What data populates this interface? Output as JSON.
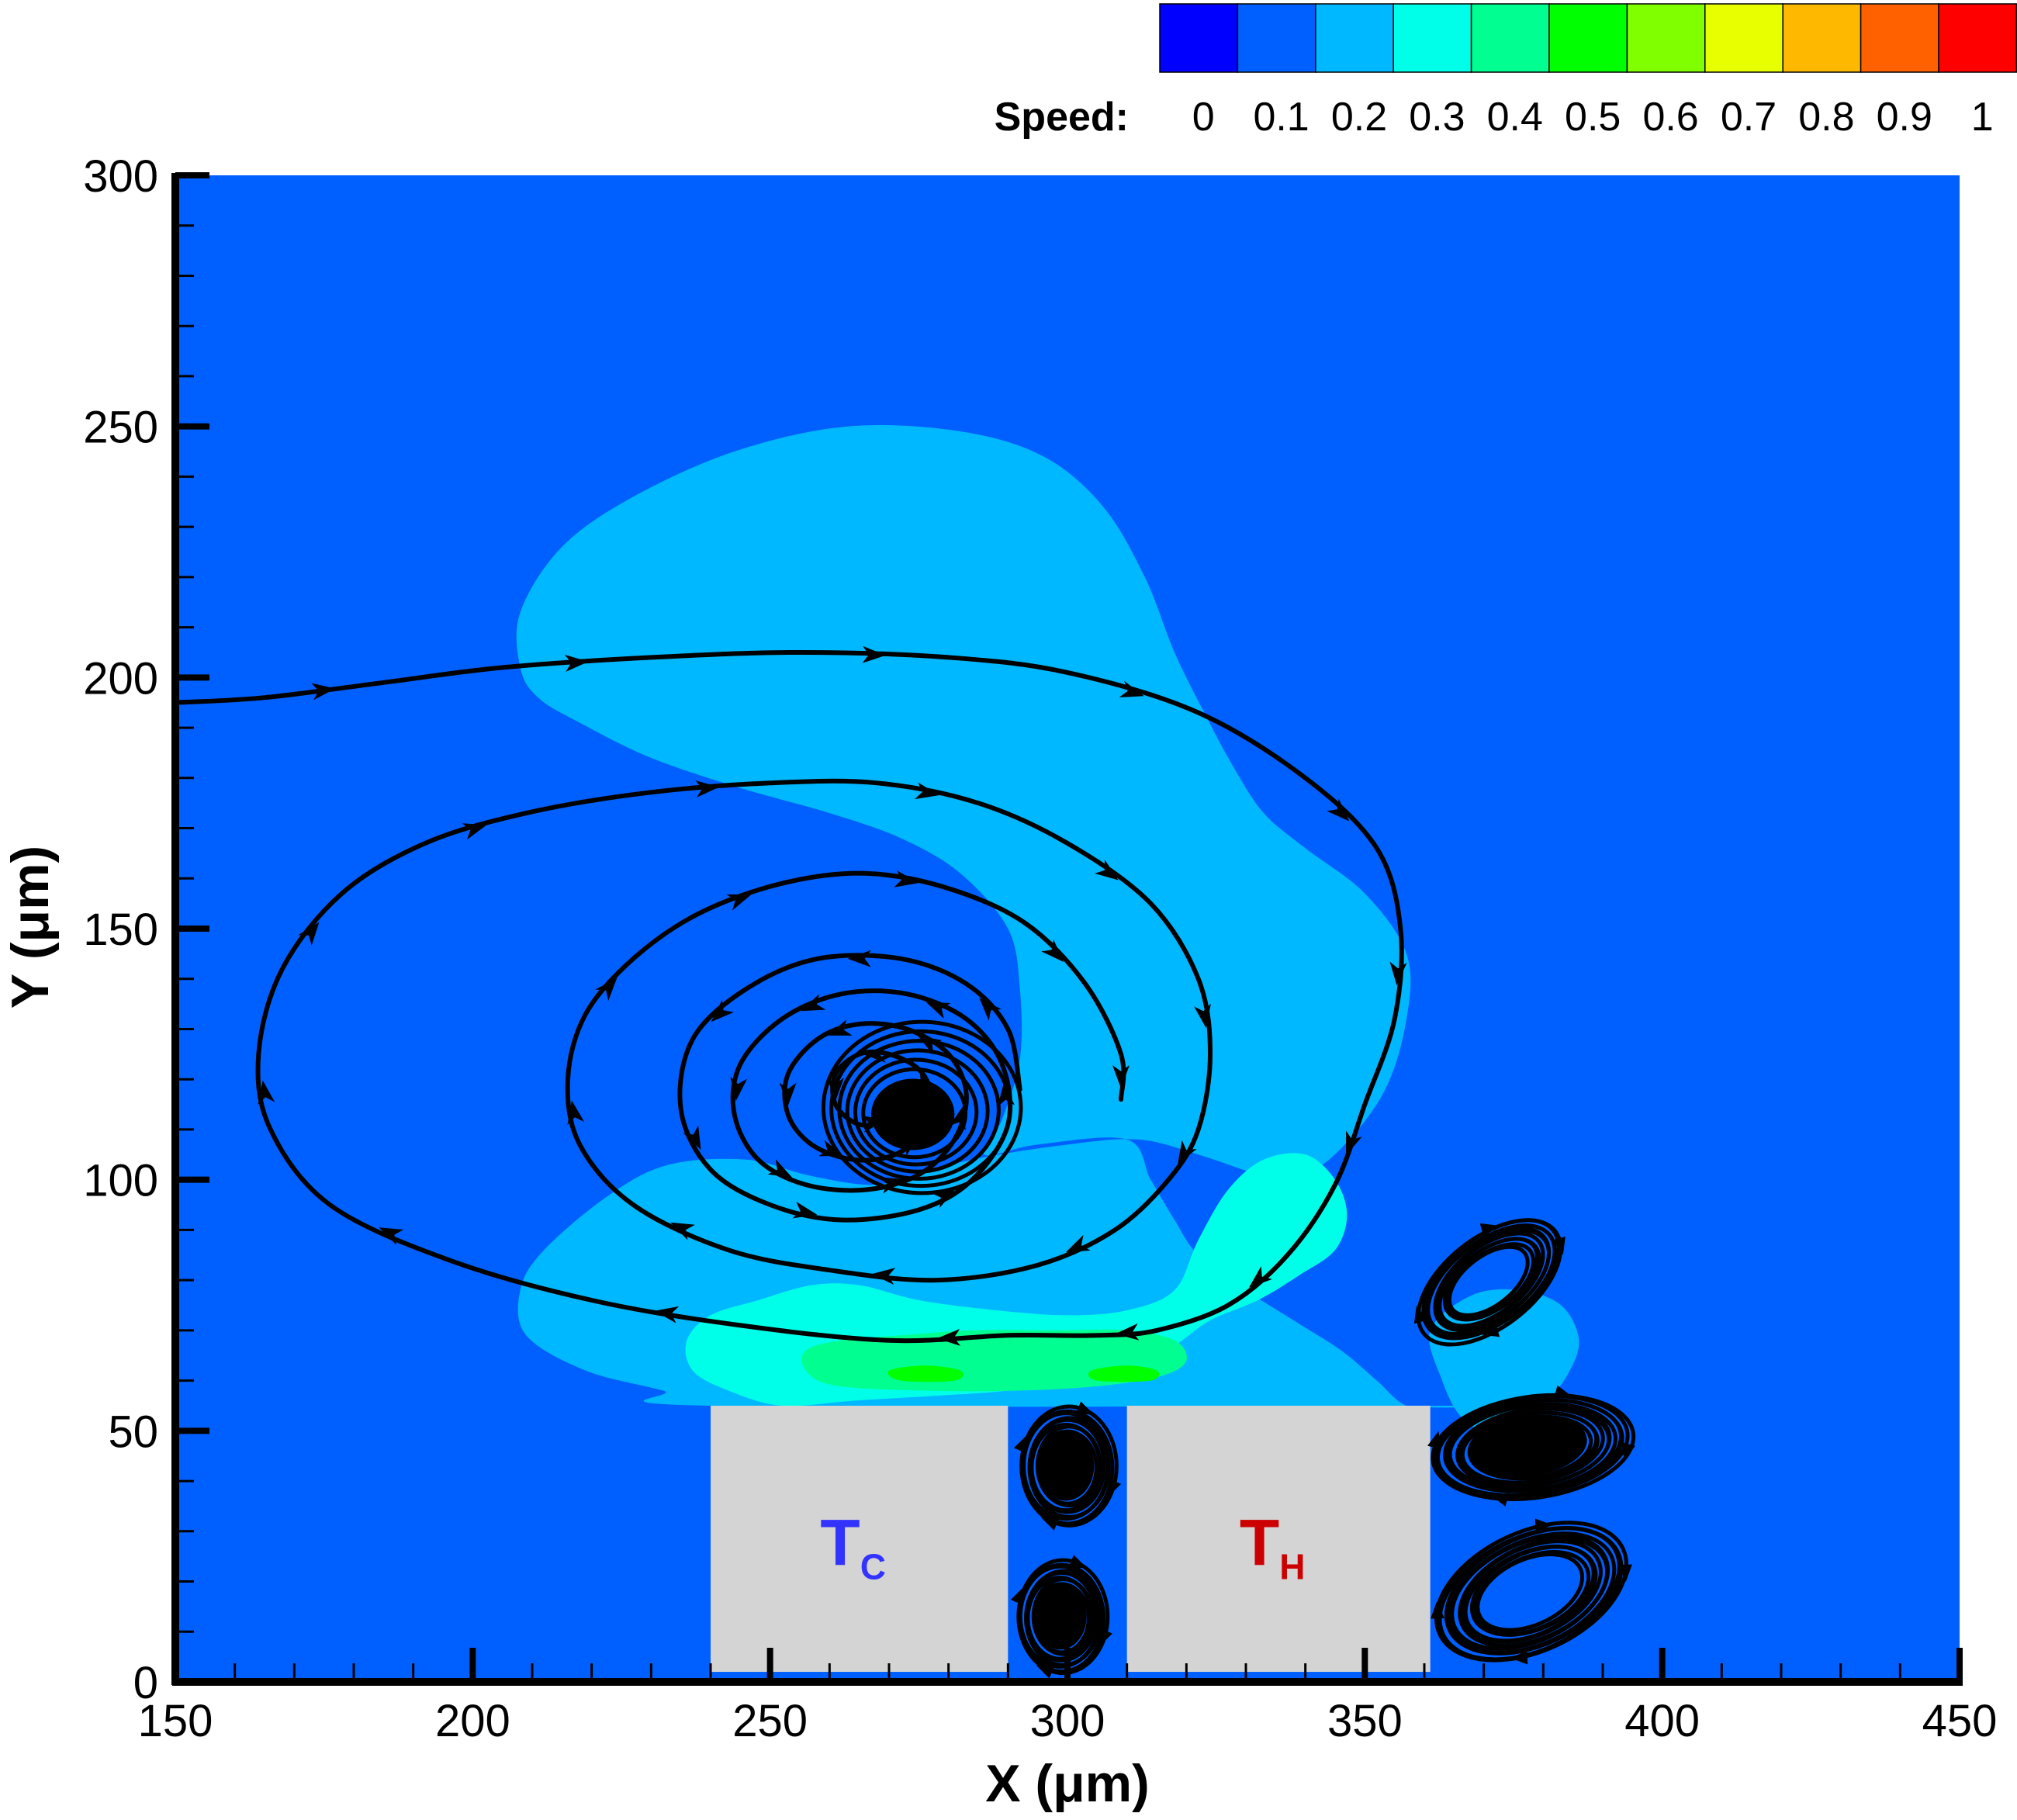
{
  "chart_data": {
    "type": "heatmap",
    "title": "",
    "xlabel": "X (μm)",
    "ylabel": "Y (μm)",
    "xlim": [
      150,
      450
    ],
    "ylim": [
      0,
      300
    ],
    "xticks": [
      150,
      200,
      250,
      300,
      350,
      400,
      450
    ],
    "yticks": [
      0,
      50,
      100,
      150,
      200,
      250,
      300
    ],
    "minor_x_step": 10,
    "minor_y_step": 10,
    "grid": false,
    "colorbar": {
      "title": "Speed:",
      "levels": [
        0,
        0.1,
        0.2,
        0.3,
        0.4,
        0.5,
        0.6,
        0.7,
        0.8,
        0.9,
        1
      ],
      "labels": [
        "0",
        "0.1",
        "0.2",
        "0.3",
        "0.4",
        "0.5",
        "0.6",
        "0.7",
        "0.8",
        "0.9",
        "1"
      ],
      "colors": [
        "#0000ff",
        "#0060ff",
        "#00b8ff",
        "#00ffe8",
        "#00ff90",
        "#00ff00",
        "#80ff00",
        "#e8ff00",
        "#ffb800",
        "#ff6000",
        "#ff0000"
      ],
      "placement": "top-right"
    },
    "background_speed_color": "#0060ff",
    "blocks": [
      {
        "x0": 240,
        "x1": 290,
        "y0": 2,
        "y1": 55,
        "label": "T",
        "subscript": "C",
        "label_color": "#3333ff",
        "fill": "#d4d4d4"
      },
      {
        "x0": 310,
        "x1": 361,
        "y0": 2,
        "y1": 55,
        "label": "T",
        "subscript": "H",
        "label_color": "#cc0000",
        "fill": "#d4d4d4"
      }
    ],
    "contour_regions": [
      {
        "level": "0.1-0.2",
        "color": "#00b8ff",
        "points": [
          [
            240,
            55
          ],
          [
            232,
            58
          ],
          [
            219,
            62
          ],
          [
            209,
            69
          ],
          [
            208,
            78
          ],
          [
            212,
            86
          ],
          [
            223,
            97
          ],
          [
            233,
            103
          ],
          [
            246,
            104
          ],
          [
            256,
            101
          ],
          [
            266,
            99
          ],
          [
            272,
            100
          ],
          [
            284,
            104
          ],
          [
            300,
            107
          ],
          [
            312,
            108
          ],
          [
            322,
            105
          ],
          [
            332,
            101
          ],
          [
            336,
            100
          ],
          [
            344,
            104
          ],
          [
            353,
            117
          ],
          [
            357,
            132
          ],
          [
            357,
            145
          ],
          [
            350,
            157
          ],
          [
            340,
            166
          ],
          [
            333,
            173
          ],
          [
            328,
            182
          ],
          [
            323,
            193
          ],
          [
            318,
            205
          ],
          [
            313,
            220
          ],
          [
            306,
            234
          ],
          [
            296,
            244
          ],
          [
            282,
            249
          ],
          [
            263,
            250
          ],
          [
            244,
            245
          ],
          [
            227,
            236
          ],
          [
            215,
            226
          ],
          [
            208,
            213
          ],
          [
            208,
            202
          ],
          [
            211,
            196
          ],
          [
            218,
            191
          ],
          [
            230,
            184
          ],
          [
            245,
            178
          ],
          [
            260,
            173
          ],
          [
            272,
            168
          ],
          [
            282,
            161
          ],
          [
            290,
            150
          ],
          [
            292,
            138
          ],
          [
            292,
            124
          ],
          [
            289,
            112
          ],
          [
            286,
            105
          ],
          [
            295,
            107
          ],
          [
            310,
            108
          ],
          [
            314,
            100
          ],
          [
            318,
            92
          ],
          [
            322,
            85
          ],
          [
            330,
            78
          ],
          [
            338,
            72
          ],
          [
            346,
            66
          ],
          [
            352,
            60
          ],
          [
            357,
            55
          ],
          [
            363,
            55
          ]
        ]
      },
      {
        "level": "0.2-0.3",
        "color": "#00ffe8",
        "points": [
          [
            252,
            55
          ],
          [
            243,
            58
          ],
          [
            237,
            62
          ],
          [
            236,
            68
          ],
          [
            240,
            73
          ],
          [
            248,
            76
          ],
          [
            257,
            79
          ],
          [
            265,
            79
          ],
          [
            275,
            76
          ],
          [
            288,
            74
          ],
          [
            300,
            73
          ],
          [
            310,
            74
          ],
          [
            318,
            78
          ],
          [
            322,
            88
          ],
          [
            327,
            98
          ],
          [
            333,
            104
          ],
          [
            340,
            105
          ],
          [
            345,
            100
          ],
          [
            347,
            93
          ],
          [
            345,
            86
          ],
          [
            339,
            81
          ],
          [
            332,
            76
          ],
          [
            324,
            72
          ],
          [
            318,
            67
          ],
          [
            310,
            62
          ],
          [
            300,
            60
          ],
          [
            290,
            58
          ],
          [
            278,
            57
          ],
          [
            264,
            56
          ]
        ]
      },
      {
        "level": "0.3-0.4",
        "color": "#00ff90",
        "points": [
          [
            261,
            59
          ],
          [
            256,
            62
          ],
          [
            256,
            66
          ],
          [
            262,
            68
          ],
          [
            272,
            69
          ],
          [
            284,
            70
          ],
          [
            298,
            70
          ],
          [
            310,
            70
          ],
          [
            318,
            68
          ],
          [
            320,
            64
          ],
          [
            316,
            61
          ],
          [
            306,
            59
          ],
          [
            292,
            58
          ],
          [
            276,
            58
          ]
        ]
      },
      {
        "level": "0.4-0.5",
        "color": "#00ff00",
        "points": [
          [
            272,
            60
          ],
          [
            270,
            62
          ],
          [
            276,
            63
          ],
          [
            282,
            62
          ],
          [
            281,
            60
          ]
        ]
      },
      {
        "level": "0.4-0.5",
        "color": "#00ff00",
        "points": [
          [
            305,
            60
          ],
          [
            304,
            62
          ],
          [
            310,
            63
          ],
          [
            315,
            62
          ],
          [
            314,
            60
          ]
        ]
      },
      {
        "level": "0.1-0.2",
        "color": "#00b8ff",
        "points": [
          [
            361,
            70
          ],
          [
            363,
            60
          ],
          [
            366,
            53
          ],
          [
            370,
            50
          ],
          [
            376,
            51
          ],
          [
            380,
            55
          ],
          [
            384,
            61
          ],
          [
            386,
            68
          ],
          [
            383,
            75
          ],
          [
            376,
            78
          ],
          [
            368,
            77
          ]
        ]
      }
    ],
    "streamlines": [
      {
        "id": "outer-branch",
        "arrow_every": 2,
        "points": [
          [
            150,
            195
          ],
          [
            165,
            196
          ],
          [
            185,
            199
          ],
          [
            205,
            202
          ],
          [
            230,
            204
          ],
          [
            255,
            205
          ],
          [
            280,
            204
          ],
          [
            300,
            201
          ],
          [
            322,
            193
          ],
          [
            340,
            180
          ],
          [
            352,
            166
          ],
          [
            356,
            150
          ],
          [
            355,
            132
          ],
          [
            350,
            115
          ],
          [
            345,
            99
          ],
          [
            337,
            85
          ],
          [
            327,
            75
          ],
          [
            315,
            70
          ],
          [
            305,
            69
          ],
          [
            290,
            69
          ],
          [
            270,
            68
          ],
          [
            245,
            71
          ],
          [
            220,
            76
          ],
          [
            196,
            84
          ],
          [
            176,
            95
          ],
          [
            166,
            110
          ],
          [
            164,
            125
          ],
          [
            168,
            142
          ],
          [
            178,
            157
          ],
          [
            192,
            167
          ],
          [
            209,
            173
          ],
          [
            229,
            177
          ],
          [
            250,
            179
          ],
          [
            268,
            179
          ],
          [
            285,
            175
          ],
          [
            300,
            167
          ],
          [
            314,
            155
          ],
          [
            322,
            140
          ],
          [
            324,
            125
          ],
          [
            322,
            110
          ],
          [
            317,
            100
          ],
          [
            308,
            90
          ],
          [
            295,
            83
          ],
          [
            278,
            80
          ],
          [
            260,
            82
          ],
          [
            243,
            86
          ],
          [
            227,
            95
          ],
          [
            218,
            107
          ],
          [
            216,
            120
          ],
          [
            219,
            133
          ],
          [
            227,
            144
          ],
          [
            238,
            153
          ],
          [
            252,
            159
          ],
          [
            266,
            161
          ],
          [
            280,
            158
          ],
          [
            293,
            151
          ],
          [
            303,
            139
          ],
          [
            309,
            125
          ],
          [
            309,
            116
          ]
        ]
      },
      {
        "id": "inner-spiral",
        "arrow_every": 2,
        "points": [
          [
            292,
            118
          ],
          [
            290,
            130
          ],
          [
            283,
            139
          ],
          [
            272,
            144
          ],
          [
            258,
            144
          ],
          [
            246,
            138
          ],
          [
            237,
            128
          ],
          [
            235,
            114
          ],
          [
            240,
            102
          ],
          [
            250,
            95
          ],
          [
            262,
            92
          ],
          [
            275,
            94
          ],
          [
            284,
            100
          ],
          [
            290,
            111
          ],
          [
            289,
            123
          ],
          [
            283,
            132
          ],
          [
            273,
            137
          ],
          [
            262,
            137
          ],
          [
            252,
            132
          ],
          [
            245,
            123
          ],
          [
            244,
            113
          ],
          [
            248,
            104
          ],
          [
            256,
            99
          ],
          [
            266,
            98
          ],
          [
            275,
            101
          ],
          [
            281,
            108
          ],
          [
            283,
            117
          ],
          [
            280,
            125
          ],
          [
            273,
            130
          ],
          [
            265,
            131
          ],
          [
            258,
            128
          ],
          [
            253,
            121
          ],
          [
            253,
            113
          ],
          [
            257,
            107
          ],
          [
            264,
            104
          ],
          [
            271,
            105
          ],
          [
            276,
            110
          ],
          [
            277,
            117
          ],
          [
            275,
            122
          ],
          [
            270,
            125
          ],
          [
            265,
            125
          ],
          [
            261,
            121
          ],
          [
            261,
            115
          ],
          [
            265,
            111
          ],
          [
            270,
            112
          ],
          [
            272,
            116
          ]
        ]
      }
    ],
    "vortex_core": {
      "cx": 274,
      "cy": 113,
      "rx": 7,
      "ry": 6
    },
    "small_vortices": [
      {
        "cx": 371,
        "cy": 80,
        "rx": 14,
        "ry": 7.5,
        "rot": -38,
        "loops": 10,
        "filled": false
      },
      {
        "cx": 378,
        "cy": 47,
        "rx": 17,
        "ry": 8.5,
        "rot": -8,
        "loops": 12,
        "filled": true
      },
      {
        "cx": 378,
        "cy": 18,
        "rx": 17,
        "ry": 10,
        "rot": -25,
        "loops": 11,
        "filled": false
      },
      {
        "cx": 300,
        "cy": 43,
        "rx": 8,
        "ry": 10,
        "rot": 0,
        "loops": 9,
        "filled": true
      },
      {
        "cx": 299,
        "cy": 13,
        "rx": 7.5,
        "ry": 9.5,
        "rot": 0,
        "loops": 9,
        "filled": true
      }
    ]
  }
}
